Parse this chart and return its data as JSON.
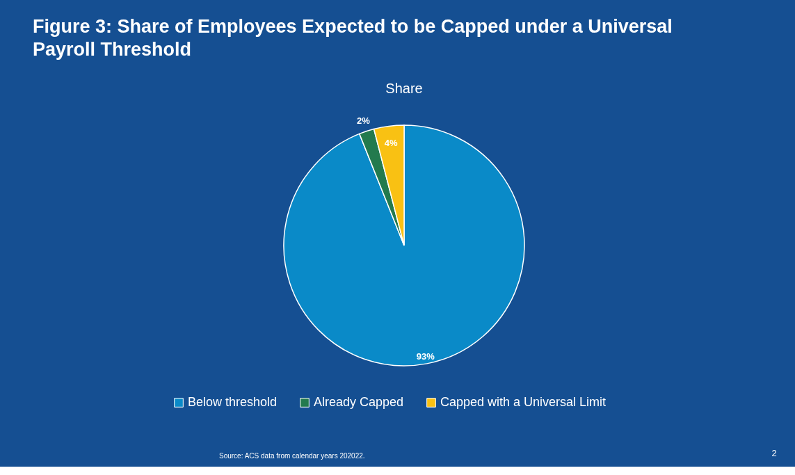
{
  "chart_data": {
    "type": "pie",
    "title": "Figure 3: Share of Employees Expected to be Capped under a Universal Payroll Threshold",
    "subtitle": "Share",
    "categories": [
      "Below threshold",
      "Already Capped",
      "Capped with a Universal Limit"
    ],
    "values": [
      93,
      2,
      4
    ],
    "colors": [
      "#0a8ac8",
      "#237a4e",
      "#f9c113"
    ],
    "value_labels": [
      "93%",
      "2%",
      "4%"
    ],
    "legend": "bottom",
    "annotations": [
      "Source: ACS data from calendar years 202022.",
      "2"
    ]
  }
}
